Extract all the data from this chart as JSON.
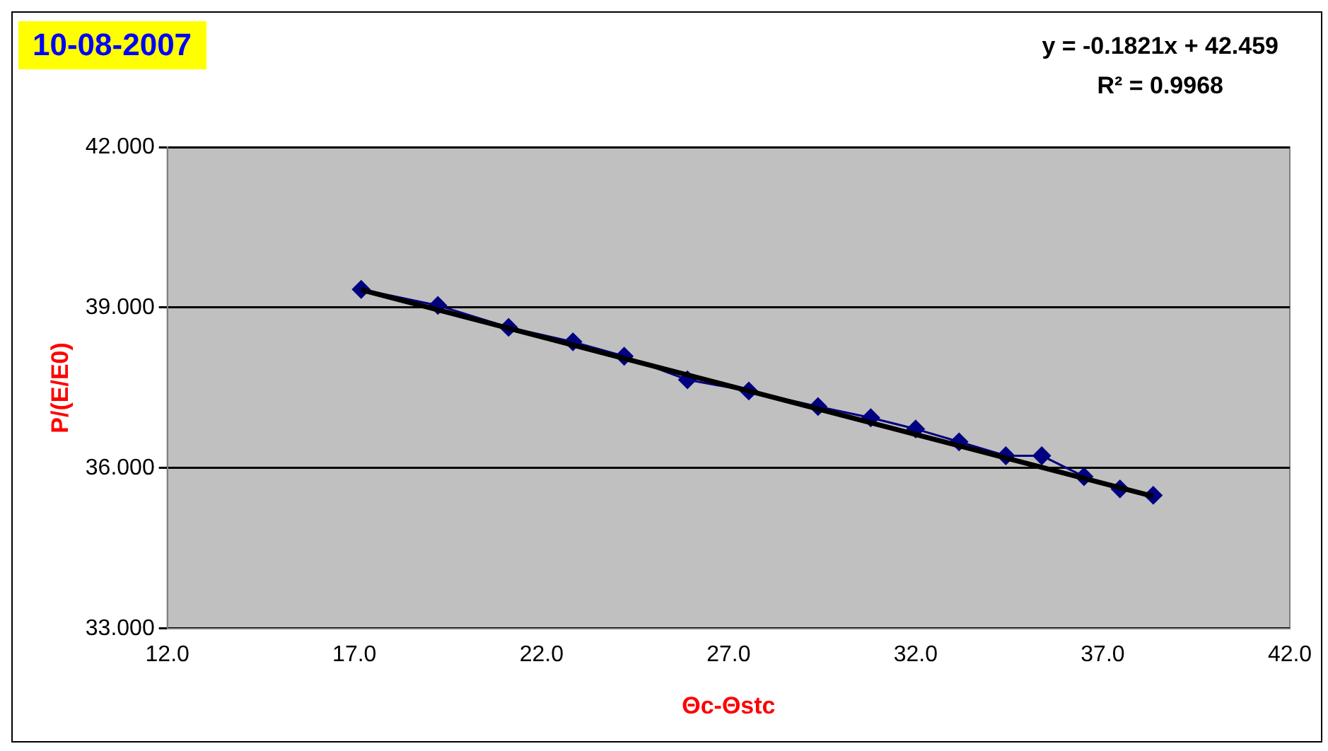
{
  "chart_data": {
    "type": "scatter",
    "title": "10-08-2007",
    "xlabel": "Θc-Θstc",
    "ylabel": "P/(E/E0)",
    "annotations": [
      "y = -0.1821x + 42.459",
      "R² = 0.9968"
    ],
    "series": [
      {
        "type": "line",
        "color": "#000080",
        "marker": "diamond",
        "x": [
          17.18,
          19.23,
          21.12,
          22.84,
          24.21,
          25.9,
          27.54,
          29.39,
          30.8,
          32.0,
          33.16,
          34.41,
          35.37,
          36.5,
          37.46,
          38.35
        ],
        "values": [
          39.34,
          39.04,
          38.63,
          38.36,
          38.09,
          37.65,
          37.44,
          37.15,
          36.94,
          36.73,
          36.49,
          36.23,
          36.23,
          35.84,
          35.61,
          35.49
        ]
      },
      {
        "type": "line",
        "color": "#000000",
        "marker": "none",
        "x": [
          17.18,
          38.35
        ],
        "values": [
          39.33,
          35.47
        ]
      }
    ],
    "xlim": [
      12,
      42
    ],
    "xticks": [
      {
        "value": 12,
        "label": "12.0"
      },
      {
        "value": 17,
        "label": "17.0"
      },
      {
        "value": 22,
        "label": "22.0"
      },
      {
        "value": 27,
        "label": "27.0"
      },
      {
        "value": 32,
        "label": "32.0"
      },
      {
        "value": 37,
        "label": "37.0"
      },
      {
        "value": 42,
        "label": "42.0"
      }
    ],
    "ylim": [
      33,
      42
    ],
    "yticks": [
      {
        "value": 33,
        "label": "33.000"
      },
      {
        "value": 36,
        "label": "36.000"
      },
      {
        "value": 39,
        "label": "39.000"
      },
      {
        "value": 42,
        "label": "42.000"
      }
    ],
    "grid": "y",
    "legend": false
  }
}
